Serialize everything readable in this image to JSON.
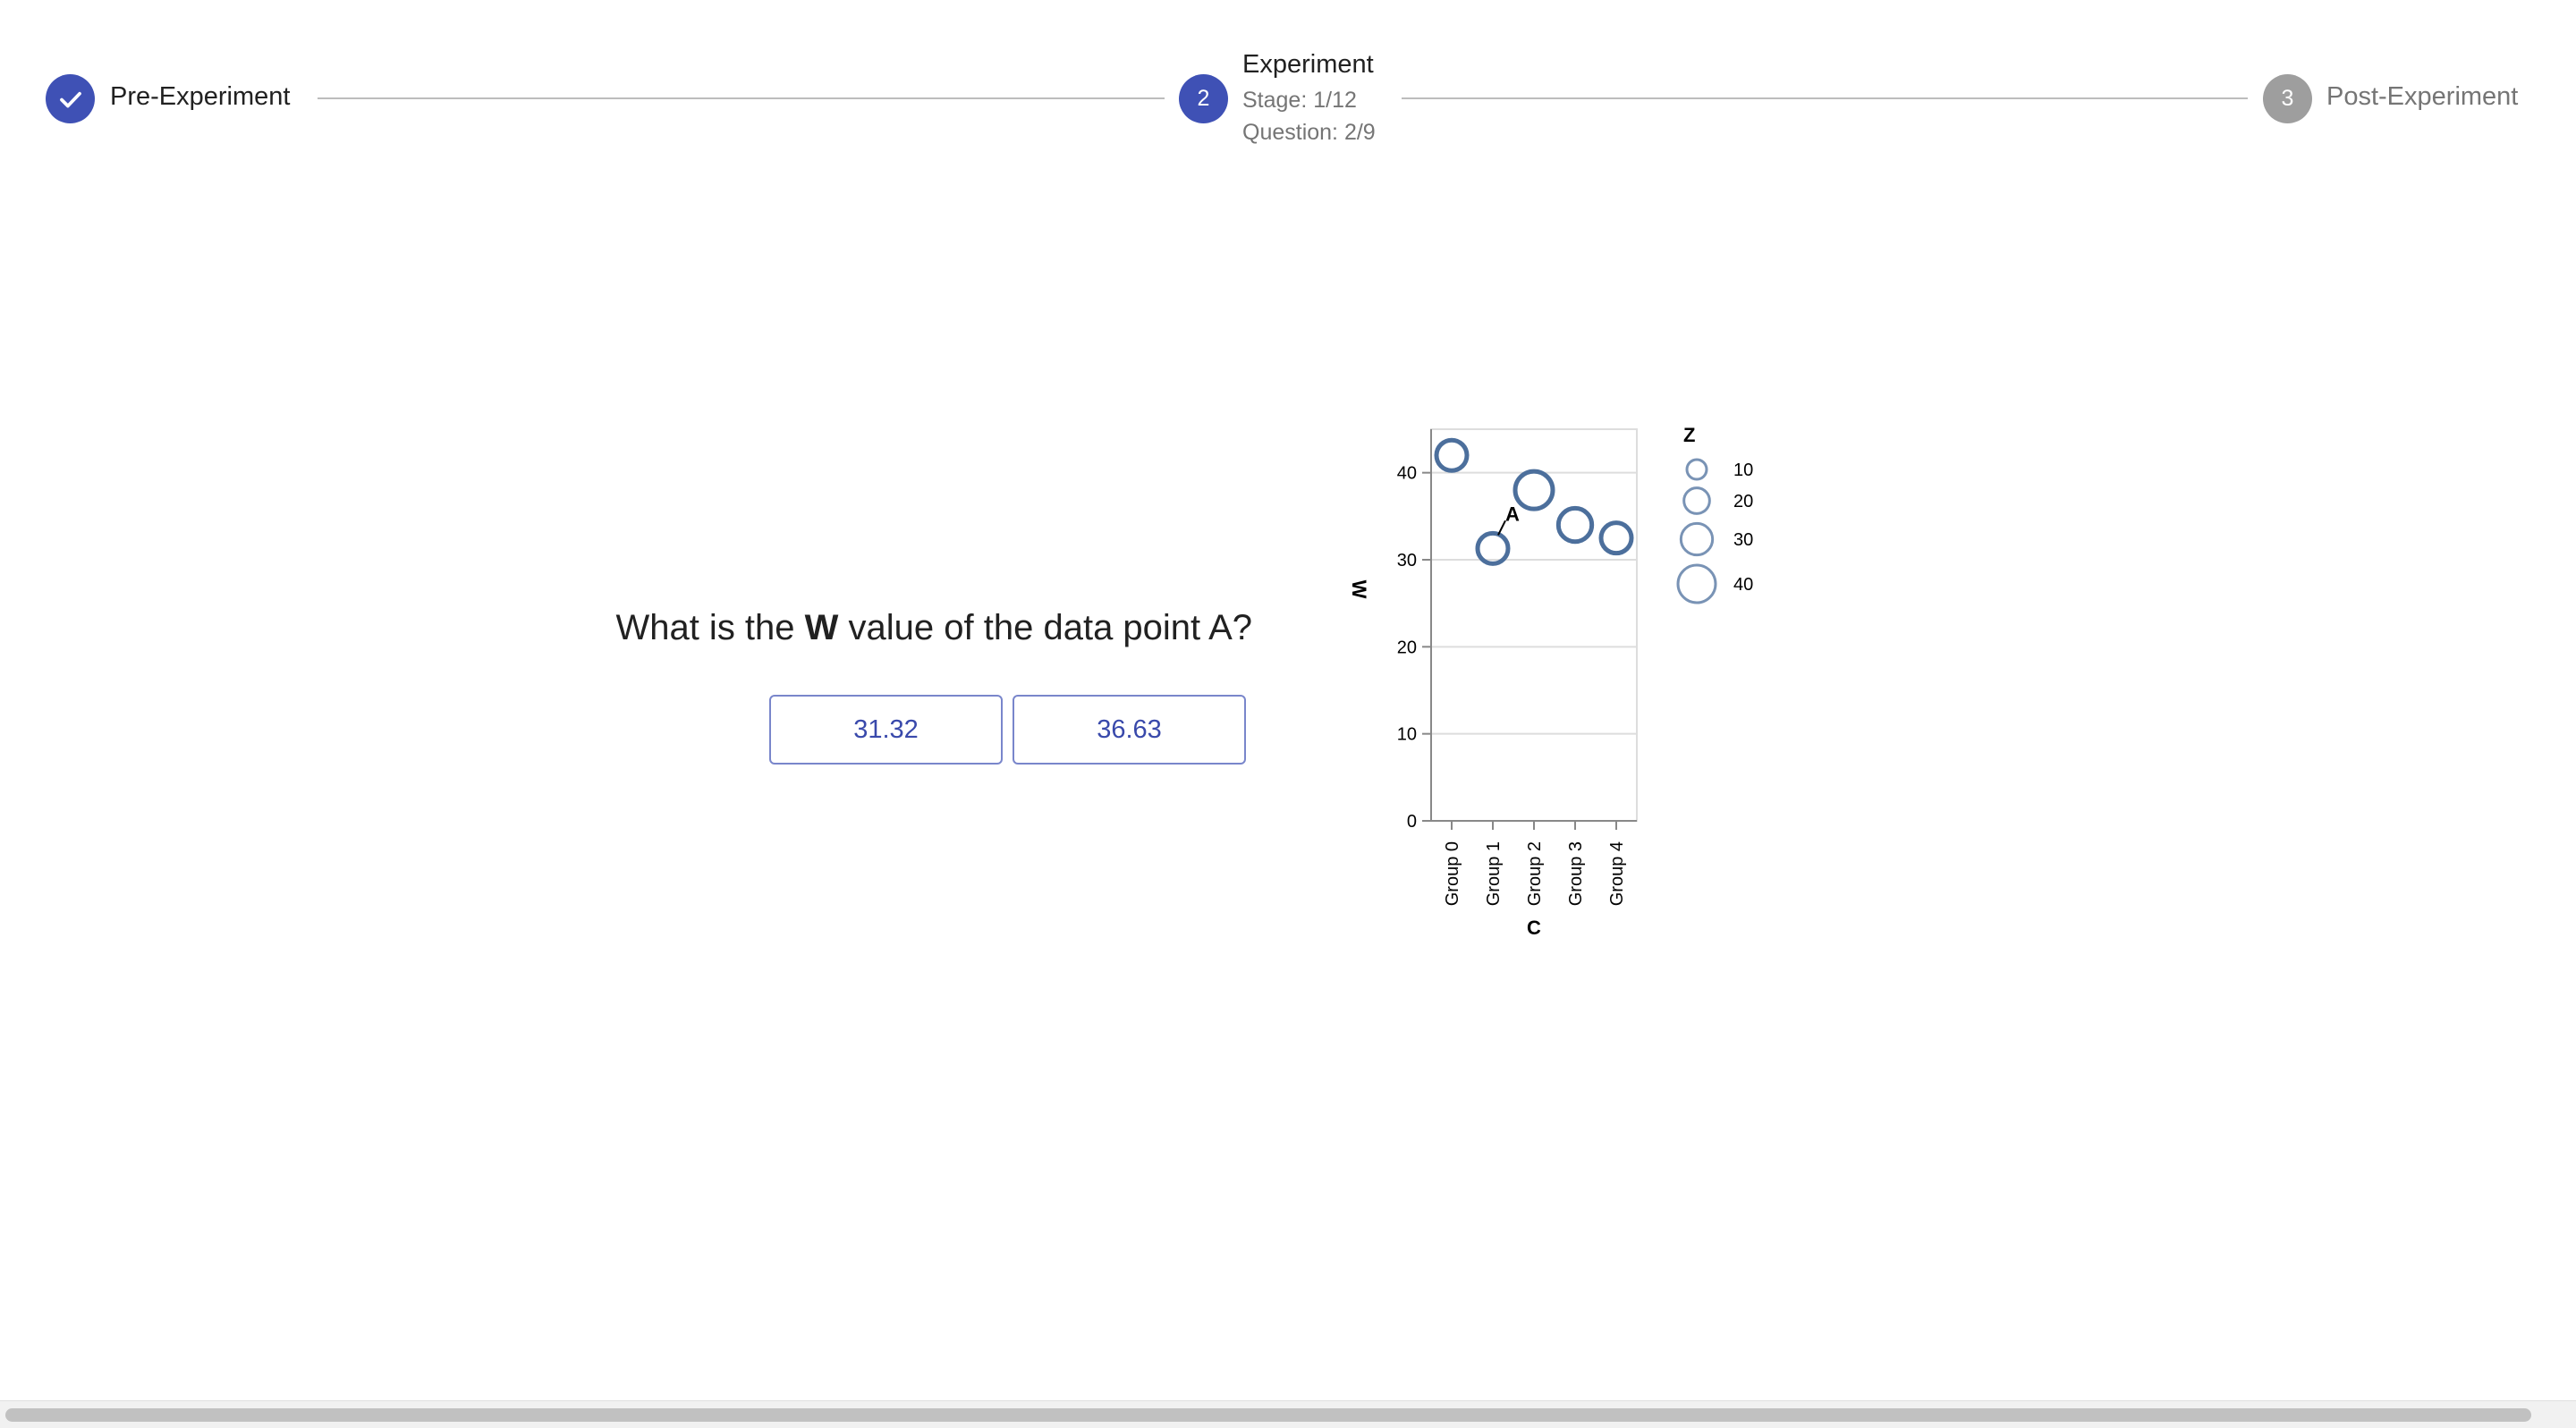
{
  "stepper": {
    "steps": [
      {
        "label": "Pre-Experiment",
        "state": "completed",
        "icon": "check-icon"
      },
      {
        "number": "2",
        "label": "Experiment",
        "state": "active",
        "stage": "Stage: 1/12",
        "question": "Question: 2/9"
      },
      {
        "number": "3",
        "label": "Post-Experiment",
        "state": "inactive"
      }
    ],
    "colors": {
      "active": "#3f51b5",
      "inactive": "#9e9e9e",
      "connector": "#bdbdbd"
    }
  },
  "question": {
    "prefix": "What is the ",
    "variable": "W",
    "suffix": " value of the data point A?"
  },
  "answers": [
    "31.32",
    "36.63"
  ],
  "chart_data": {
    "type": "scatter",
    "x_field": "C",
    "y_field": "W",
    "size_field": "Z",
    "xlabel": "C",
    "ylabel": "W",
    "categories": [
      "Group 0",
      "Group 1",
      "Group 2",
      "Group 3",
      "Group 4"
    ],
    "points": [
      {
        "x": "Group 0",
        "y": 42,
        "z": 28
      },
      {
        "x": "Group 1",
        "y": 31.3,
        "z": 28,
        "annotation": "A"
      },
      {
        "x": "Group 2",
        "y": 38,
        "z": 40
      },
      {
        "x": "Group 3",
        "y": 34,
        "z": 33
      },
      {
        "x": "Group 4",
        "y": 32.5,
        "z": 28
      }
    ],
    "ylim": [
      0,
      45
    ],
    "yticks": [
      0,
      10,
      20,
      30,
      40
    ],
    "grid": true,
    "legend": {
      "title": "Z",
      "placement": "right",
      "values": [
        10,
        20,
        30,
        40
      ]
    },
    "mark_color": "#4c6f9c"
  }
}
